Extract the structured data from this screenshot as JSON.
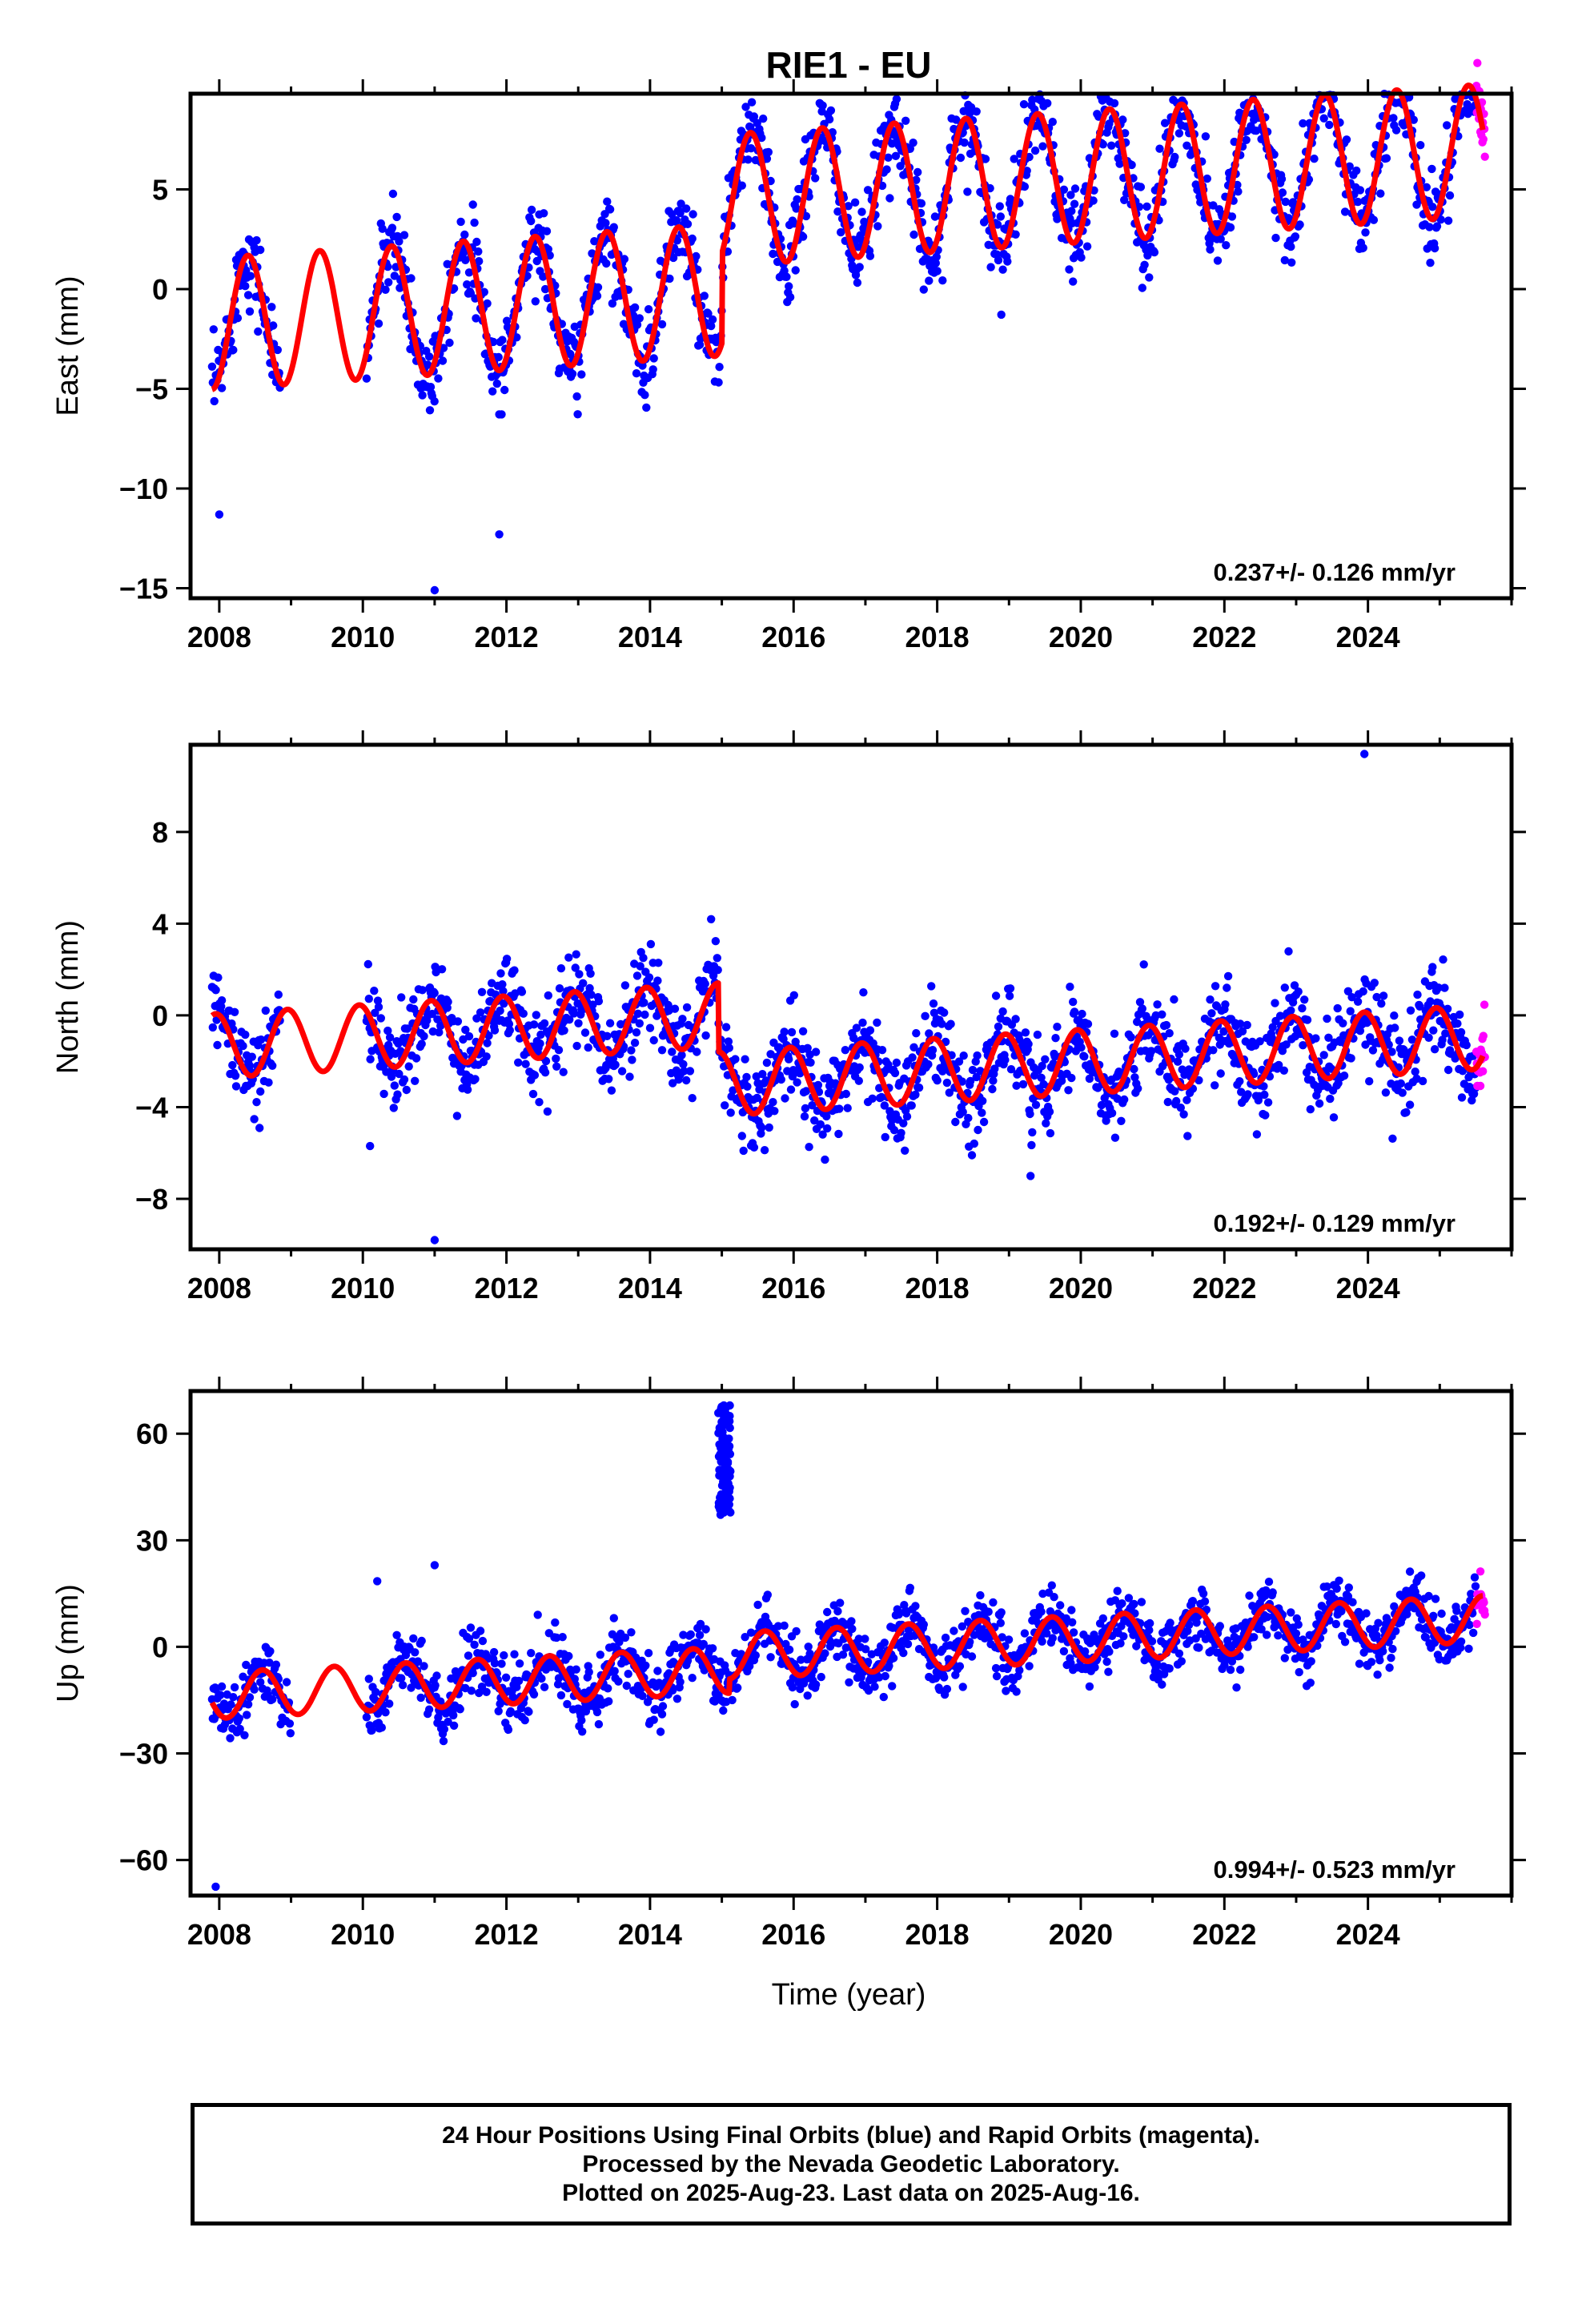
{
  "title": "RIE1 - EU",
  "colors": {
    "final": "#0000ff",
    "rapid": "#ff00ff",
    "model": "#ff0000",
    "axis": "#000000"
  },
  "xlabel": "Time (year)",
  "footer": {
    "line1": "24 Hour Positions Using Final Orbits (blue) and Rapid Orbits (magenta).",
    "line2": "Processed by the Nevada Geodetic Laboratory.",
    "line3": "Plotted on 2025-Aug-23. Last data on 2025-Aug-16."
  },
  "chart_data": [
    {
      "type": "scatter",
      "component": "east",
      "ylabel": "East (mm)",
      "xlim": [
        2007.6,
        2026.0
      ],
      "ylim": [
        -15.5,
        9.8
      ],
      "xticks": [
        2008,
        2010,
        2012,
        2014,
        2016,
        2018,
        2020,
        2022,
        2024
      ],
      "xtick_labels": [
        "2008",
        "2010",
        "2012",
        "2014",
        "2016",
        "2018",
        "2020",
        "2022",
        "2024"
      ],
      "yticks": [
        -15,
        -10,
        -5,
        0,
        5
      ],
      "ytick_labels": [
        "−15",
        "−10",
        "−5",
        "0",
        "5"
      ],
      "rate_label": "0.237+/- 0.126 mm/yr",
      "series": [
        {
          "role": "final",
          "x_range": [
            2007.9,
            2025.5
          ],
          "gap": [
            2008.85,
            2010.05
          ],
          "offset_at": 2015.0,
          "offset": 4.5,
          "trend_mm_per_yr": 0.237,
          "seasonal_amp": 3.3,
          "peak_phase": 0.4,
          "noise": 1.5
        },
        {
          "role": "rapid",
          "x_range": [
            2025.51,
            2025.63
          ]
        },
        {
          "role": "model",
          "base": -1.8,
          "start": 2007.9,
          "end": 2025.6
        }
      ],
      "outliers": [
        [
          2011.0,
          -15.1
        ],
        [
          2011.9,
          -12.3
        ],
        [
          2008.0,
          -11.3
        ]
      ]
    },
    {
      "type": "scatter",
      "component": "north",
      "ylabel": "North (mm)",
      "xlim": [
        2007.6,
        2026.0
      ],
      "ylim": [
        -10.2,
        11.8
      ],
      "xticks": [
        2008,
        2010,
        2012,
        2014,
        2016,
        2018,
        2020,
        2022,
        2024
      ],
      "xtick_labels": [
        "2008",
        "2010",
        "2012",
        "2014",
        "2016",
        "2018",
        "2020",
        "2022",
        "2024"
      ],
      "yticks": [
        -8,
        -4,
        0,
        4,
        8
      ],
      "ytick_labels": [
        "−8",
        "−4",
        "0",
        "4",
        "8"
      ],
      "rate_label": "0.192+/- 0.129 mm/yr",
      "series": [
        {
          "role": "final",
          "x_range": [
            2007.9,
            2025.5
          ],
          "gap": [
            2008.85,
            2010.05
          ],
          "offset_at": 2014.95,
          "offset": -3.0,
          "trend_mm_per_yr": 0.192,
          "seasonal_amp": 1.4,
          "peak_phase": 0.95,
          "noise": 1.4
        },
        {
          "role": "rapid",
          "x_range": [
            2025.51,
            2025.63
          ]
        },
        {
          "role": "model",
          "base": -1.4,
          "start": 2007.9,
          "end": 2025.6
        }
      ],
      "outliers": [
        [
          2011.0,
          -9.8
        ],
        [
          2010.1,
          -5.7
        ],
        [
          2023.95,
          11.4
        ],
        [
          2019.3,
          -7.0
        ]
      ]
    },
    {
      "type": "scatter",
      "component": "up",
      "ylabel": "Up (mm)",
      "xlim": [
        2007.6,
        2026.0
      ],
      "ylim": [
        -70,
        72
      ],
      "xticks": [
        2008,
        2010,
        2012,
        2014,
        2016,
        2018,
        2020,
        2022,
        2024
      ],
      "xtick_labels": [
        "2008",
        "2010",
        "2012",
        "2014",
        "2016",
        "2018",
        "2020",
        "2022",
        "2024"
      ],
      "yticks": [
        -60,
        -30,
        0,
        30,
        60
      ],
      "ytick_labels": [
        "−60",
        "−30",
        "0",
        "30",
        "60"
      ],
      "rate_label": "0.994+/- 0.523 mm/yr",
      "series": [
        {
          "role": "final",
          "x_range": [
            2007.9,
            2025.5
          ],
          "gap": [
            2009.0,
            2010.05
          ],
          "offset_at": 2015.1,
          "offset": 4.0,
          "trend_mm_per_yr": 0.994,
          "seasonal_amp": 6.5,
          "peak_phase": 0.6,
          "noise": 6.0
        },
        {
          "role": "rapid",
          "x_range": [
            2025.51,
            2025.63
          ]
        },
        {
          "role": "model",
          "base": -14,
          "start": 2007.9,
          "end": 2025.6
        }
      ],
      "anomaly_cluster": {
        "x_range": [
          2014.95,
          2015.12
        ],
        "y_range": [
          37,
          68
        ]
      },
      "outliers": [
        [
          2007.95,
          -67.5
        ],
        [
          2011.0,
          23.0
        ],
        [
          2010.2,
          18.5
        ]
      ]
    }
  ]
}
